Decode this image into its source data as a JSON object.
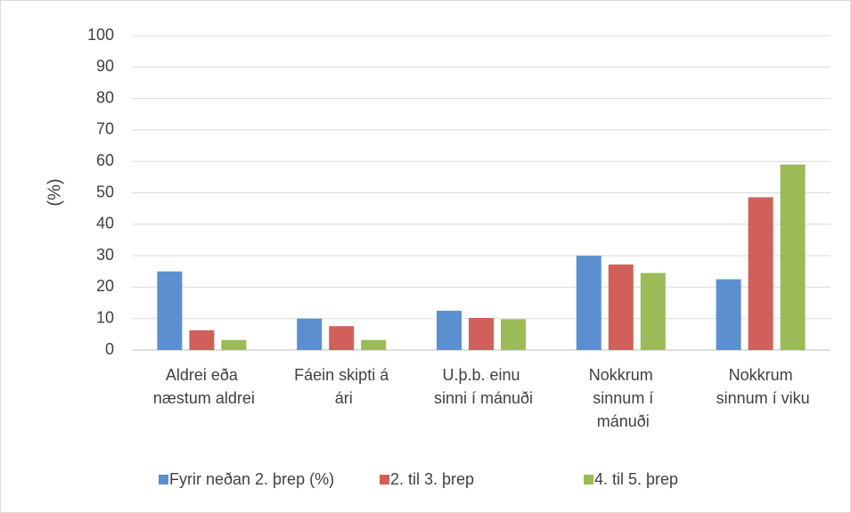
{
  "chart_data": {
    "type": "bar",
    "y_label": "(%)",
    "categories": [
      "Aldrei eða næstum aldrei",
      "Fáein skipti á ári",
      "U.þ.b. einu sinni í mánuði",
      "Nokkrum sinnum í mánuði",
      "Nokkrum sinnum í viku"
    ],
    "series": [
      {
        "name": "Fyrir neðan 2. þrep (%)",
        "color": "#5b8fcf",
        "values": [
          25,
          10,
          12.5,
          30,
          22.5
        ]
      },
      {
        "name": "2. til 3. þrep",
        "color": "#d1605b",
        "values": [
          6.3,
          7.6,
          10.2,
          27.2,
          48.6
        ]
      },
      {
        "name": "4. til 5. þrep",
        "color": "#9bbb59",
        "values": [
          3.2,
          3.2,
          9.8,
          24.5,
          59
        ]
      }
    ],
    "ylim": [
      0,
      100
    ],
    "yticks": [
      0,
      10,
      20,
      30,
      40,
      50,
      60,
      70,
      80,
      90,
      100
    ],
    "grid": true,
    "legend": "bottom"
  }
}
